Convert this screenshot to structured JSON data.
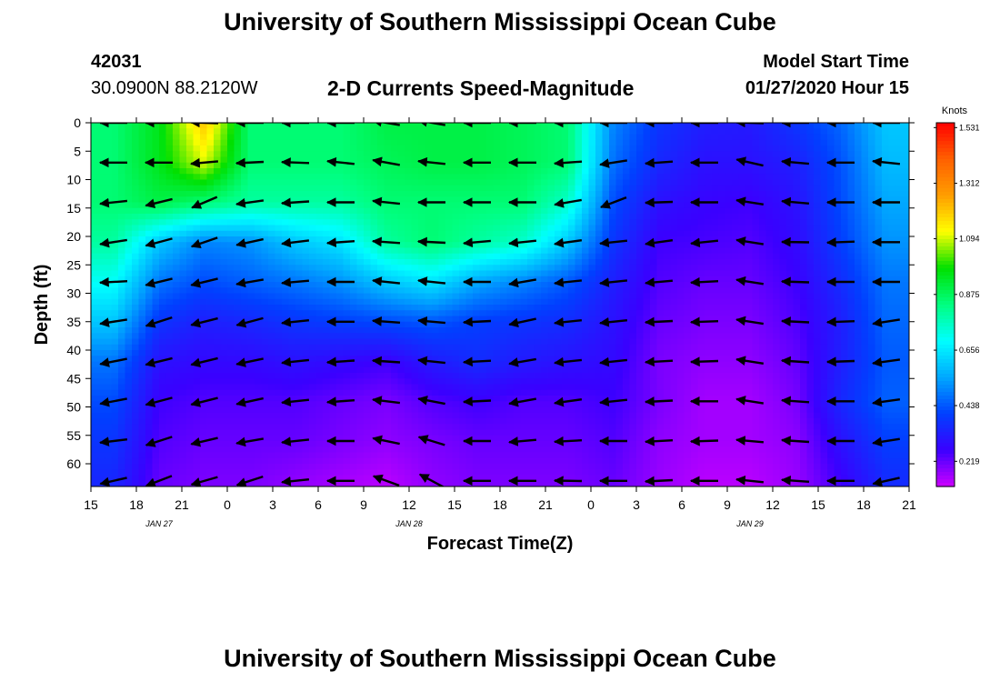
{
  "header": {
    "title": "University of Southern Mississippi Ocean Cube",
    "station_id": "42031",
    "location": "30.0900N 88.2120W",
    "plot_title": "2-D Currents Speed-Magnitude",
    "model_start_label": "Model Start Time",
    "model_start_value": "01/27/2020 Hour 15"
  },
  "footer": {
    "title": "University of Southern Mississippi Ocean Cube"
  },
  "chart_data": {
    "type": "heatmap",
    "title": "2-D Currents Speed-Magnitude",
    "xlabel": "Forecast Time(Z)",
    "ylabel": "Depth (ft)",
    "x_tick_labels": [
      "15",
      "18",
      "21",
      "0",
      "3",
      "6",
      "9",
      "12",
      "15",
      "18",
      "21",
      "0",
      "3",
      "6",
      "9",
      "12",
      "15",
      "18",
      "21"
    ],
    "x_range_hours": [
      0,
      54
    ],
    "date_labels": [
      {
        "text": "JAN 27",
        "hour": 4.5
      },
      {
        "text": "JAN 28",
        "hour": 21
      },
      {
        "text": "JAN 29",
        "hour": 43.5
      }
    ],
    "y_tick_labels": [
      "0",
      "5",
      "10",
      "15",
      "20",
      "25",
      "30",
      "35",
      "40",
      "45",
      "50",
      "55",
      "60"
    ],
    "y_range_ft": [
      0,
      64
    ],
    "colorbar": {
      "title": "Knots",
      "tick_labels": [
        "1.531",
        "1.312",
        "1.094",
        "0.875",
        "0.656",
        "0.438",
        "0.219"
      ],
      "min": 0.12,
      "max": 1.55
    },
    "colormap": [
      "#cc00ff",
      "#3a00ff",
      "#0040ff",
      "#00a8ff",
      "#00ffff",
      "#00ff80",
      "#00e000",
      "#ffff00",
      "#ff9d00",
      "#ff6000",
      "#ff0000"
    ],
    "times": [
      1.5,
      4.5,
      7.5,
      10.5,
      13.5,
      16.5,
      19.5,
      22.5,
      25.5,
      28.5,
      31.5,
      34.5,
      37.5,
      40.5,
      43.5,
      46.5,
      49.5,
      52.5
    ],
    "depths": [
      0,
      7,
      14,
      21,
      28,
      35,
      42,
      49,
      56,
      63
    ],
    "speed_knots": [
      [
        0.85,
        0.95,
        1.2,
        0.85,
        0.85,
        0.85,
        0.9,
        0.9,
        0.9,
        0.88,
        0.85,
        0.5,
        0.38,
        0.33,
        0.32,
        0.38,
        0.46,
        0.6
      ],
      [
        0.85,
        0.95,
        1.1,
        0.85,
        0.85,
        0.85,
        0.88,
        0.9,
        0.9,
        0.88,
        0.85,
        0.47,
        0.35,
        0.3,
        0.3,
        0.33,
        0.43,
        0.58
      ],
      [
        0.85,
        0.9,
        0.85,
        0.8,
        0.8,
        0.8,
        0.85,
        0.85,
        0.85,
        0.85,
        0.75,
        0.42,
        0.3,
        0.27,
        0.26,
        0.3,
        0.42,
        0.55
      ],
      [
        0.8,
        0.6,
        0.5,
        0.52,
        0.6,
        0.65,
        0.8,
        0.85,
        0.8,
        0.75,
        0.6,
        0.38,
        0.26,
        0.25,
        0.24,
        0.28,
        0.4,
        0.52
      ],
      [
        0.7,
        0.48,
        0.42,
        0.45,
        0.48,
        0.52,
        0.6,
        0.65,
        0.55,
        0.5,
        0.44,
        0.33,
        0.24,
        0.22,
        0.22,
        0.26,
        0.36,
        0.48
      ],
      [
        0.6,
        0.38,
        0.33,
        0.35,
        0.38,
        0.4,
        0.42,
        0.44,
        0.4,
        0.38,
        0.36,
        0.3,
        0.22,
        0.2,
        0.2,
        0.24,
        0.33,
        0.46
      ],
      [
        0.48,
        0.3,
        0.28,
        0.28,
        0.3,
        0.28,
        0.26,
        0.32,
        0.36,
        0.32,
        0.3,
        0.28,
        0.2,
        0.18,
        0.18,
        0.22,
        0.33,
        0.44
      ],
      [
        0.42,
        0.26,
        0.24,
        0.24,
        0.24,
        0.22,
        0.2,
        0.24,
        0.26,
        0.24,
        0.24,
        0.26,
        0.2,
        0.16,
        0.16,
        0.2,
        0.35,
        0.45
      ],
      [
        0.38,
        0.24,
        0.22,
        0.22,
        0.22,
        0.2,
        0.18,
        0.2,
        0.22,
        0.22,
        0.22,
        0.24,
        0.18,
        0.16,
        0.16,
        0.18,
        0.3,
        0.4
      ],
      [
        0.35,
        0.22,
        0.2,
        0.2,
        0.18,
        0.16,
        0.14,
        0.18,
        0.2,
        0.2,
        0.2,
        0.22,
        0.17,
        0.14,
        0.14,
        0.17,
        0.26,
        0.36
      ]
    ],
    "vector_times": [
      1.5,
      4.5,
      7.5,
      10.5,
      13.5,
      16.5,
      19.5,
      22.5,
      25.5,
      28.5,
      31.5,
      34.5,
      37.5,
      40.5,
      43.5,
      46.5,
      49.5,
      52.5
    ],
    "vector_depths": [
      0,
      7,
      14,
      21,
      28,
      35,
      42,
      49,
      56,
      63
    ],
    "vector_angles_deg": [
      [
        180,
        180,
        182,
        180,
        180,
        180,
        190,
        190,
        180,
        180,
        180,
        180,
        180,
        180,
        182,
        180,
        180,
        180
      ],
      [
        180,
        180,
        175,
        177,
        182,
        186,
        190,
        186,
        180,
        180,
        176,
        171,
        176,
        180,
        193,
        185,
        180,
        186
      ],
      [
        174,
        166,
        157,
        172,
        176,
        180,
        186,
        180,
        180,
        180,
        170,
        159,
        178,
        180,
        189,
        185,
        180,
        180
      ],
      [
        171,
        165,
        161,
        168,
        173,
        176,
        184,
        183,
        175,
        174,
        172,
        174,
        172,
        174,
        189,
        181,
        178,
        180
      ],
      [
        177,
        166,
        166,
        170,
        175,
        180,
        186,
        186,
        180,
        170,
        174,
        174,
        175,
        177,
        189,
        182,
        180,
        180
      ],
      [
        171,
        162,
        166,
        165,
        174,
        180,
        184,
        185,
        177,
        168,
        174,
        174,
        177,
        178,
        189,
        183,
        178,
        171
      ],
      [
        169,
        166,
        166,
        168,
        174,
        176,
        184,
        186,
        177,
        170,
        174,
        174,
        177,
        178,
        189,
        184,
        178,
        172
      ],
      [
        169,
        165,
        166,
        168,
        174,
        176,
        187,
        191,
        177,
        170,
        172,
        174,
        177,
        180,
        189,
        184,
        180,
        172
      ],
      [
        173,
        162,
        167,
        170,
        174,
        180,
        192,
        197,
        180,
        175,
        177,
        180,
        177,
        178,
        185,
        184,
        180,
        171
      ],
      [
        167,
        159,
        164,
        162,
        174,
        180,
        200,
        208,
        180,
        180,
        181,
        180,
        177,
        180,
        186,
        184,
        180,
        167
      ]
    ]
  }
}
